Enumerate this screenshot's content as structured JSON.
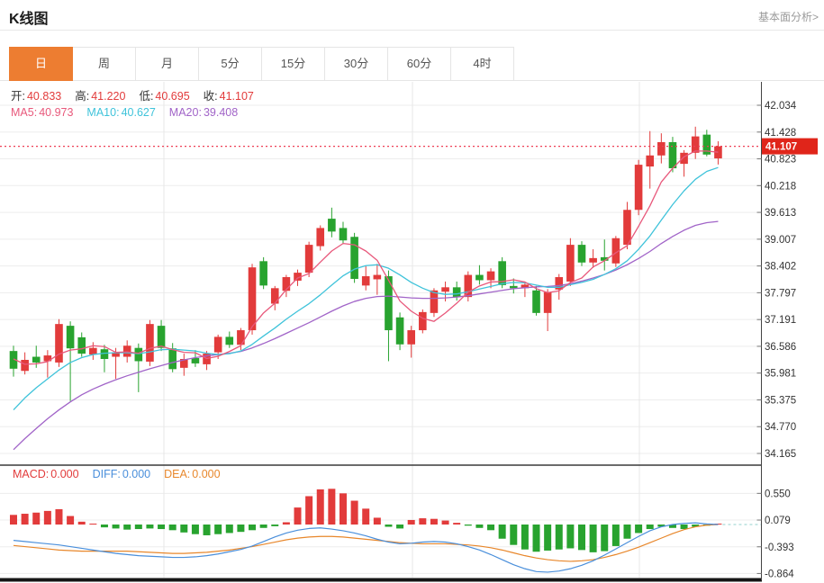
{
  "header": {
    "title": "K线图",
    "link": "基本面分析>"
  },
  "tabs": {
    "items": [
      "日",
      "周",
      "月",
      "5分",
      "15分",
      "30分",
      "60分",
      "4时"
    ],
    "active_index": 0
  },
  "readout": {
    "ohlc": [
      {
        "label": "开:",
        "value": "40.833"
      },
      {
        "label": "高:",
        "value": "41.220"
      },
      {
        "label": "低:",
        "value": "40.695"
      },
      {
        "label": "收:",
        "value": "41.107"
      }
    ],
    "ma": [
      {
        "label": "MA5:",
        "value": "40.973",
        "color": "#e8587b"
      },
      {
        "label": "MA10:",
        "value": "40.627",
        "color": "#3fc3da"
      },
      {
        "label": "MA20:",
        "value": "39.408",
        "color": "#a164c8"
      }
    ],
    "macd": [
      {
        "label": "MACD:",
        "value": "0.000",
        "color": "#e23b3b"
      },
      {
        "label": "DIFF:",
        "value": "0.000",
        "color": "#4a8fdb"
      },
      {
        "label": "DEA:",
        "value": "0.000",
        "color": "#e8872b"
      }
    ]
  },
  "colors": {
    "up": "#e23b3b",
    "down": "#28a32f",
    "ma5": "#e8587b",
    "ma10": "#3fc3da",
    "ma20": "#a164c8",
    "diff": "#4a8fdb",
    "dea": "#e8872b",
    "tag_bg": "#e0251a",
    "dotted_line": "#ee3f55",
    "tab_active": "#ed7d31",
    "grid": "#ededed",
    "vgrid": "#e7e7e7",
    "axis": "#444"
  },
  "chart_data": {
    "type": "candlestick+macd",
    "title": "K线图 (daily K-line with MA5/MA10/MA20 and MACD)",
    "price_panel": {
      "y_tick_labels": [
        "42.034",
        "41.428",
        "40.823",
        "40.218",
        "39.613",
        "39.007",
        "38.402",
        "37.797",
        "37.191",
        "36.586",
        "35.981",
        "35.375",
        "34.770",
        "34.165"
      ],
      "ylim": [
        34.165,
        42.034
      ],
      "current_price": 41.107,
      "current_price_label": "41.107",
      "time_gridlines_x": [
        182,
        458,
        710
      ],
      "candles_ohlc": [
        [
          36.48,
          36.6,
          35.9,
          36.08
        ],
        [
          36.03,
          36.45,
          35.95,
          36.28
        ],
        [
          36.35,
          36.6,
          36.1,
          36.22
        ],
        [
          36.25,
          36.5,
          35.88,
          36.38
        ],
        [
          36.22,
          37.2,
          36.12,
          37.09
        ],
        [
          37.05,
          37.15,
          35.35,
          36.54
        ],
        [
          36.79,
          36.9,
          36.35,
          36.42
        ],
        [
          36.4,
          36.68,
          36.28,
          36.55
        ],
        [
          36.52,
          36.62,
          36.0,
          36.3
        ],
        [
          36.35,
          36.55,
          35.85,
          36.45
        ],
        [
          36.35,
          36.72,
          36.22,
          36.6
        ],
        [
          36.55,
          36.65,
          35.55,
          36.25
        ],
        [
          36.24,
          37.18,
          36.14,
          37.09
        ],
        [
          37.05,
          37.18,
          36.48,
          36.55
        ],
        [
          36.54,
          36.66,
          36.0,
          36.07
        ],
        [
          36.1,
          36.42,
          35.92,
          36.3
        ],
        [
          36.32,
          36.5,
          36.12,
          36.2
        ],
        [
          36.18,
          36.48,
          36.05,
          36.42
        ],
        [
          36.45,
          36.85,
          36.3,
          36.8
        ],
        [
          36.8,
          36.92,
          36.55,
          36.62
        ],
        [
          36.62,
          37.0,
          36.5,
          36.95
        ],
        [
          36.95,
          38.45,
          36.85,
          38.37
        ],
        [
          38.51,
          38.6,
          37.88,
          37.96
        ],
        [
          37.55,
          37.95,
          37.4,
          37.9
        ],
        [
          37.84,
          38.2,
          37.7,
          38.15
        ],
        [
          38.07,
          38.32,
          37.95,
          38.25
        ],
        [
          38.25,
          38.95,
          38.15,
          38.88
        ],
        [
          38.85,
          39.32,
          38.75,
          39.26
        ],
        [
          39.47,
          39.72,
          39.05,
          39.18
        ],
        [
          39.26,
          39.4,
          38.9,
          38.98
        ],
        [
          39.06,
          39.15,
          38.02,
          38.11
        ],
        [
          37.96,
          38.4,
          37.85,
          38.17
        ],
        [
          38.1,
          38.45,
          37.75,
          38.2
        ],
        [
          38.17,
          38.3,
          36.25,
          36.95
        ],
        [
          37.24,
          37.35,
          36.5,
          36.63
        ],
        [
          36.63,
          37.05,
          36.33,
          36.95
        ],
        [
          36.95,
          37.42,
          36.88,
          37.36
        ],
        [
          37.34,
          37.9,
          37.25,
          37.85
        ],
        [
          37.82,
          38.05,
          37.6,
          37.92
        ],
        [
          37.92,
          38.05,
          37.62,
          37.7
        ],
        [
          37.7,
          38.28,
          37.6,
          38.2
        ],
        [
          38.2,
          38.42,
          37.98,
          38.08
        ],
        [
          38.08,
          38.35,
          37.9,
          38.28
        ],
        [
          38.51,
          38.6,
          37.9,
          37.97
        ],
        [
          37.95,
          38.12,
          37.78,
          37.9
        ],
        [
          37.9,
          38.02,
          37.7,
          37.98
        ],
        [
          37.85,
          37.95,
          37.28,
          37.34
        ],
        [
          37.34,
          37.88,
          36.93,
          37.81
        ],
        [
          37.87,
          38.22,
          37.64,
          38.15
        ],
        [
          38.05,
          39.03,
          37.95,
          38.88
        ],
        [
          38.88,
          38.96,
          38.4,
          38.48
        ],
        [
          38.48,
          38.78,
          38.36,
          38.58
        ],
        [
          38.6,
          39.0,
          38.3,
          38.52
        ],
        [
          38.46,
          39.08,
          38.38,
          39.03
        ],
        [
          38.88,
          39.85,
          38.78,
          39.67
        ],
        [
          39.67,
          40.8,
          39.55,
          40.69
        ],
        [
          40.65,
          41.45,
          40.15,
          40.9
        ],
        [
          40.9,
          41.4,
          40.72,
          41.2
        ],
        [
          41.2,
          41.32,
          40.52,
          40.61
        ],
        [
          40.71,
          41.02,
          40.42,
          40.96
        ],
        [
          40.96,
          41.55,
          40.82,
          41.33
        ],
        [
          41.37,
          41.48,
          40.88,
          40.92
        ],
        [
          40.833,
          41.22,
          40.695,
          41.107
        ]
      ],
      "ma5": [
        36.3,
        36.18,
        36.19,
        36.24,
        36.41,
        36.5,
        36.53,
        36.6,
        36.58,
        36.45,
        36.46,
        36.43,
        36.54,
        36.59,
        36.51,
        36.45,
        36.44,
        36.31,
        36.36,
        36.47,
        36.6,
        37.03,
        37.34,
        37.56,
        37.87,
        38.13,
        38.23,
        38.49,
        38.74,
        38.91,
        38.88,
        38.74,
        38.53,
        38.08,
        37.61,
        37.38,
        37.22,
        37.15,
        37.34,
        37.56,
        37.81,
        37.95,
        38.04,
        38.05,
        38.09,
        38.04,
        37.89,
        37.8,
        37.84,
        38.03,
        38.13,
        38.38,
        38.52,
        38.7,
        38.86,
        39.3,
        39.76,
        40.3,
        40.61,
        40.87,
        41.0,
        41.0,
        40.973
      ],
      "ma10": [
        35.15,
        35.42,
        35.65,
        35.85,
        36.05,
        36.22,
        36.33,
        36.4,
        36.43,
        36.44,
        36.44,
        36.42,
        36.46,
        36.51,
        36.52,
        36.5,
        36.48,
        36.43,
        36.4,
        36.42,
        36.48,
        36.63,
        36.82,
        37.0,
        37.2,
        37.38,
        37.55,
        37.75,
        37.97,
        38.18,
        38.33,
        38.41,
        38.43,
        38.35,
        38.2,
        38.03,
        37.9,
        37.8,
        37.76,
        37.77,
        37.82,
        37.88,
        37.94,
        38.0,
        38.03,
        38.02,
        37.97,
        37.92,
        37.92,
        37.98,
        38.03,
        38.1,
        38.21,
        38.34,
        38.52,
        38.78,
        39.08,
        39.44,
        39.79,
        40.1,
        40.36,
        40.54,
        40.627
      ],
      "ma20": [
        34.25,
        34.5,
        34.73,
        34.95,
        35.15,
        35.33,
        35.49,
        35.62,
        35.73,
        35.83,
        35.92,
        36.0,
        36.08,
        36.15,
        36.22,
        36.28,
        36.33,
        36.37,
        36.4,
        36.43,
        36.47,
        36.55,
        36.65,
        36.76,
        36.88,
        37.0,
        37.12,
        37.25,
        37.38,
        37.5,
        37.6,
        37.67,
        37.71,
        37.72,
        37.7,
        37.68,
        37.67,
        37.67,
        37.68,
        37.7,
        37.73,
        37.77,
        37.81,
        37.85,
        37.89,
        37.91,
        37.93,
        37.94,
        37.96,
        38.0,
        38.06,
        38.13,
        38.21,
        38.31,
        38.43,
        38.57,
        38.73,
        38.91,
        39.07,
        39.21,
        39.32,
        39.38,
        39.408
      ]
    },
    "macd_panel": {
      "y_tick_labels": [
        "0.550",
        "0.079",
        "-0.393",
        "-0.864"
      ],
      "histogram": [
        0.17,
        0.19,
        0.21,
        0.24,
        0.27,
        0.15,
        0.05,
        0.01,
        -0.05,
        -0.07,
        -0.09,
        -0.08,
        -0.07,
        -0.08,
        -0.1,
        -0.14,
        -0.17,
        -0.19,
        -0.17,
        -0.15,
        -0.13,
        -0.1,
        -0.06,
        -0.03,
        0.04,
        0.3,
        0.5,
        0.62,
        0.63,
        0.55,
        0.42,
        0.28,
        0.12,
        -0.04,
        -0.07,
        0.08,
        0.11,
        0.1,
        0.07,
        0.03,
        -0.02,
        -0.06,
        -0.1,
        -0.25,
        -0.36,
        -0.44,
        -0.48,
        -0.46,
        -0.44,
        -0.42,
        -0.45,
        -0.49,
        -0.47,
        -0.38,
        -0.25,
        -0.15,
        -0.08,
        -0.04,
        -0.06,
        -0.08,
        -0.04,
        -0.02,
        0.0
      ],
      "diff": [
        -0.28,
        -0.3,
        -0.32,
        -0.34,
        -0.36,
        -0.39,
        -0.42,
        -0.45,
        -0.48,
        -0.51,
        -0.53,
        -0.55,
        -0.56,
        -0.57,
        -0.58,
        -0.58,
        -0.57,
        -0.55,
        -0.52,
        -0.48,
        -0.44,
        -0.38,
        -0.3,
        -0.22,
        -0.15,
        -0.1,
        -0.07,
        -0.06,
        -0.08,
        -0.11,
        -0.15,
        -0.2,
        -0.26,
        -0.31,
        -0.34,
        -0.33,
        -0.31,
        -0.3,
        -0.31,
        -0.34,
        -0.39,
        -0.45,
        -0.53,
        -0.62,
        -0.71,
        -0.78,
        -0.83,
        -0.84,
        -0.82,
        -0.78,
        -0.72,
        -0.64,
        -0.54,
        -0.43,
        -0.32,
        -0.21,
        -0.11,
        -0.04,
        0.0,
        0.02,
        0.03,
        0.01,
        0.0
      ],
      "dea": [
        -0.37,
        -0.39,
        -0.41,
        -0.43,
        -0.45,
        -0.46,
        -0.47,
        -0.47,
        -0.47,
        -0.47,
        -0.47,
        -0.48,
        -0.49,
        -0.5,
        -0.51,
        -0.51,
        -0.5,
        -0.49,
        -0.47,
        -0.45,
        -0.42,
        -0.39,
        -0.35,
        -0.31,
        -0.27,
        -0.24,
        -0.22,
        -0.21,
        -0.21,
        -0.22,
        -0.24,
        -0.26,
        -0.28,
        -0.3,
        -0.32,
        -0.33,
        -0.34,
        -0.34,
        -0.34,
        -0.35,
        -0.36,
        -0.38,
        -0.41,
        -0.45,
        -0.5,
        -0.55,
        -0.59,
        -0.62,
        -0.64,
        -0.65,
        -0.64,
        -0.62,
        -0.58,
        -0.53,
        -0.47,
        -0.4,
        -0.32,
        -0.24,
        -0.16,
        -0.09,
        -0.04,
        -0.01,
        0.0
      ]
    }
  }
}
